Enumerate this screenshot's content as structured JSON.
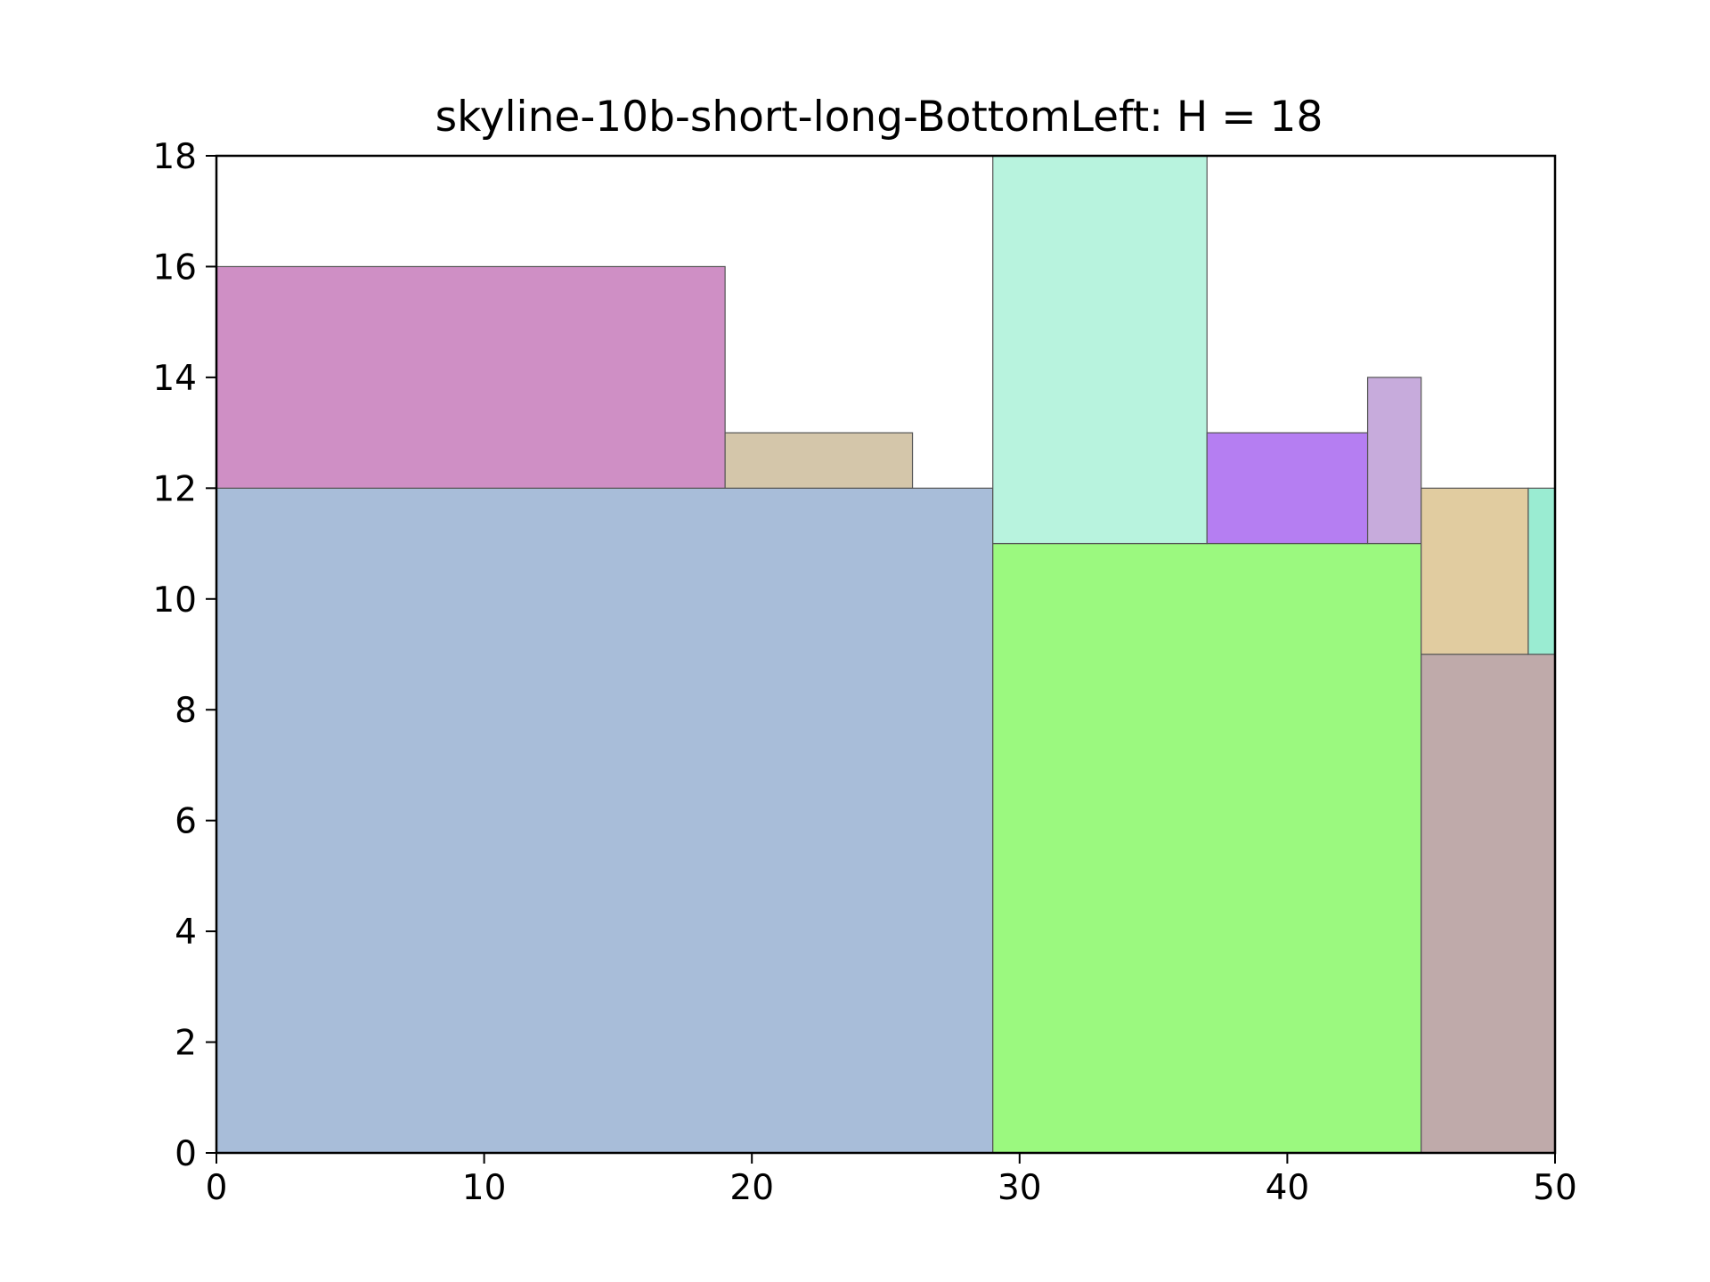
{
  "chart_data": {
    "type": "rectangle-packing",
    "title": "skyline-10b-short-long-BottomLeft: H = 18",
    "xlabel": "",
    "ylabel": "",
    "xlim": [
      0,
      50
    ],
    "ylim": [
      0,
      18
    ],
    "xticks": [
      0,
      10,
      20,
      30,
      40,
      50
    ],
    "yticks": [
      0,
      2,
      4,
      6,
      8,
      10,
      12,
      14,
      16,
      18
    ],
    "grid": false,
    "rectangles": [
      {
        "x": 0,
        "y": 0,
        "w": 29,
        "h": 12,
        "color": "#a8bdd9"
      },
      {
        "x": 0,
        "y": 12,
        "w": 19,
        "h": 4,
        "color": "#cf8fc5"
      },
      {
        "x": 19,
        "y": 12,
        "w": 7,
        "h": 1,
        "color": "#d4c6aa"
      },
      {
        "x": 29,
        "y": 0,
        "w": 16,
        "h": 11,
        "color": "#9bf97f"
      },
      {
        "x": 29,
        "y": 11,
        "w": 8,
        "h": 7,
        "color": "#b8f3de"
      },
      {
        "x": 37,
        "y": 11,
        "w": 6,
        "h": 2,
        "color": "#b57ef2"
      },
      {
        "x": 43,
        "y": 11,
        "w": 2,
        "h": 3,
        "color": "#c7abdc"
      },
      {
        "x": 45,
        "y": 0,
        "w": 5,
        "h": 9,
        "color": "#bfaaaa"
      },
      {
        "x": 45,
        "y": 9,
        "w": 4,
        "h": 3,
        "color": "#e1cca0"
      },
      {
        "x": 49,
        "y": 9,
        "w": 1,
        "h": 3,
        "color": "#9aecd2"
      }
    ]
  }
}
